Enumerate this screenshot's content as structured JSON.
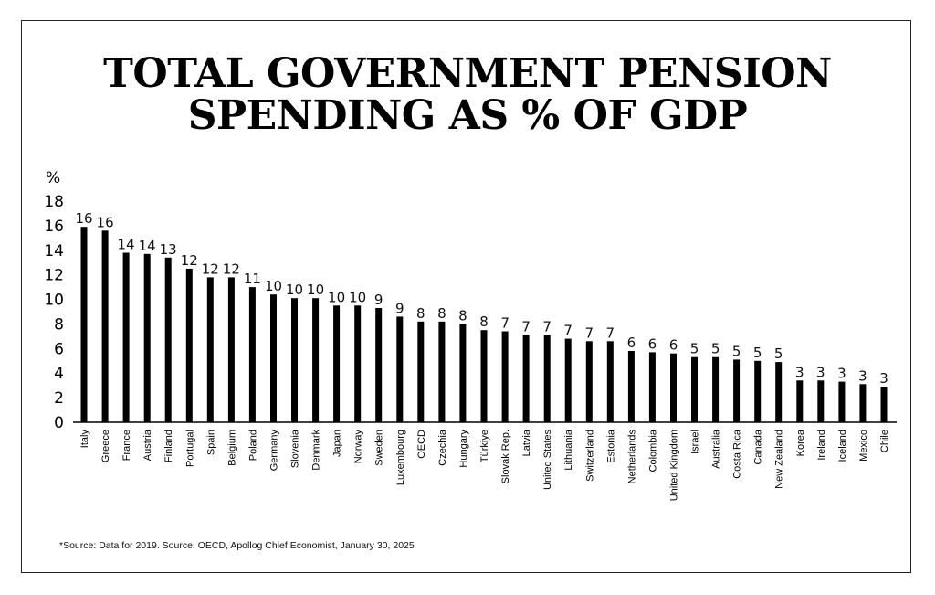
{
  "title_lines": [
    "TOTAL GOVERNMENT PENSION",
    "SPENDING AS % OF GDP"
  ],
  "source": "*Source: Data for 2019. Source: OECD, Apollog Chief Economist, January 30, 2025",
  "colors": {
    "bar": "#000000",
    "frame": "#222222",
    "background": "#ffffff"
  },
  "chart_data": {
    "type": "bar",
    "title": "TOTAL GOVERNMENT PENSION SPENDING AS % OF GDP",
    "ylabel": "%",
    "xlabel": "",
    "ylim": [
      0,
      18
    ],
    "yticks": [
      0,
      2,
      4,
      6,
      8,
      10,
      12,
      14,
      16,
      18
    ],
    "grid": false,
    "categories": [
      "Italy",
      "Greece",
      "France",
      "Austria",
      "Finland",
      "Portugal",
      "Spain",
      "Belgium",
      "Poland",
      "Germany",
      "Slovenia",
      "Denmark",
      "Japan",
      "Norway",
      "Sweden",
      "Luxembourg",
      "OECD",
      "Czechia",
      "Hungary",
      "Türkiye",
      "Slovak Rep.",
      "Latvia",
      "United States",
      "Lithuania",
      "Switzerland",
      "Estonia",
      "Netherlands",
      "Colombia",
      "United Kingdom",
      "Israel",
      "Australia",
      "Costa Rica",
      "Canada",
      "New Zealand",
      "Korea",
      "Ireland",
      "Iceland",
      "Mexico",
      "Chile"
    ],
    "values": [
      15.9,
      15.6,
      13.8,
      13.7,
      13.4,
      12.5,
      11.8,
      11.8,
      11,
      10.4,
      10.1,
      10.1,
      9.5,
      9.5,
      9.3,
      8.6,
      8.2,
      8.2,
      8,
      7.5,
      7.4,
      7.1,
      7.1,
      6.8,
      6.6,
      6.6,
      5.8,
      5.7,
      5.6,
      5.3,
      5.3,
      5.1,
      5,
      4.9,
      3.4,
      3.4,
      3.3,
      3.1,
      2.9
    ],
    "data_labels": [
      "16",
      "16",
      "14",
      "14",
      "13",
      "12",
      "12",
      "12",
      "11",
      "10",
      "10",
      "10",
      "10",
      "10",
      "9",
      "9",
      "8",
      "8",
      "8",
      "8",
      "7",
      "7",
      "7",
      "7",
      "7",
      "7",
      "6",
      "6",
      "6",
      "5",
      "5",
      "5",
      "5",
      "5",
      "3",
      "3",
      "3",
      "3",
      "3"
    ]
  }
}
